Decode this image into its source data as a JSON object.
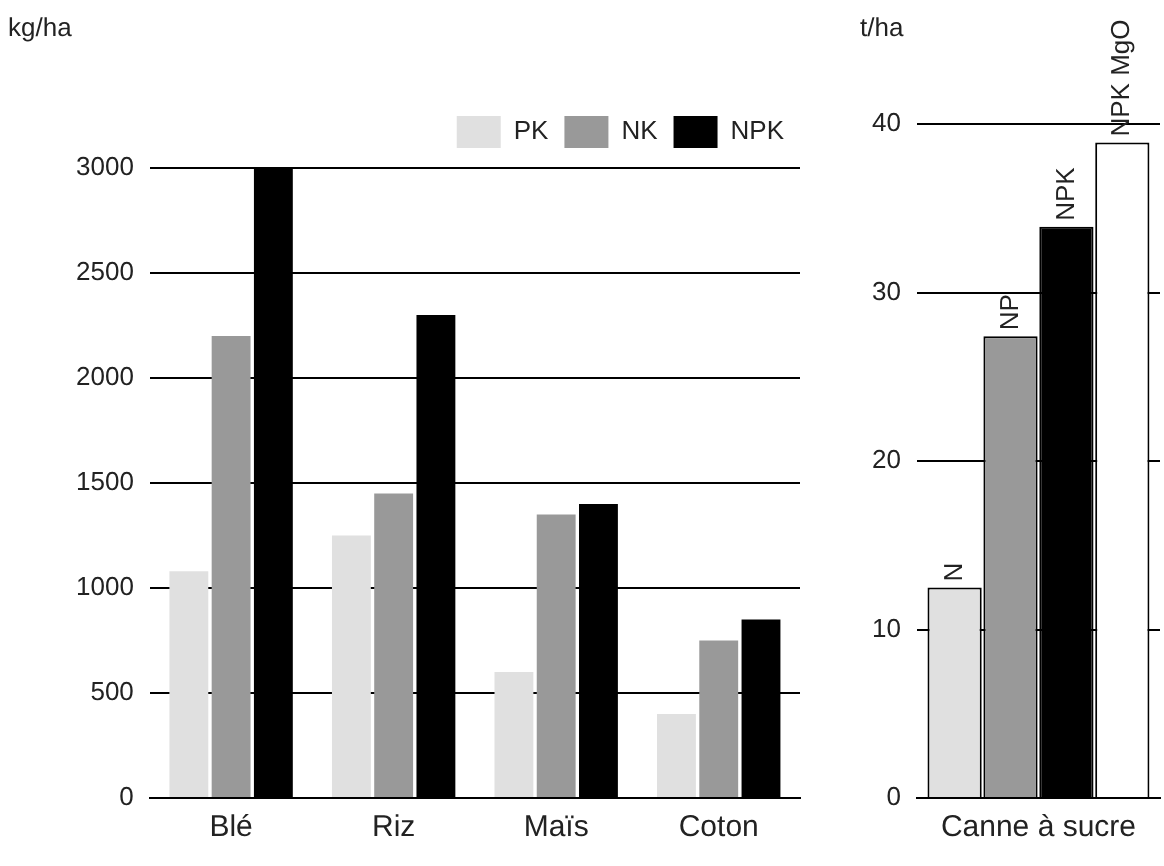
{
  "chart_data": [
    {
      "type": "bar",
      "ylabel": "kg/ha",
      "categories": [
        "Blé",
        "Riz",
        "Maïs",
        "Coton"
      ],
      "series": [
        {
          "name": "PK",
          "color": "#e0e0e0",
          "values": [
            1080,
            1250,
            600,
            400
          ]
        },
        {
          "name": "NK",
          "color": "#999999",
          "values": [
            2200,
            1450,
            1350,
            750
          ]
        },
        {
          "name": "NPK",
          "color": "#000000",
          "values": [
            3000,
            2300,
            1400,
            850
          ]
        }
      ],
      "ylim": [
        0,
        3000
      ],
      "yticks": [
        0,
        500,
        1000,
        1500,
        2000,
        2500,
        3000
      ],
      "grid": "y",
      "legend": "top right"
    },
    {
      "type": "bar",
      "ylabel": "t/ha",
      "categories": [
        "Canne à sucre"
      ],
      "series": [
        {
          "name": "N",
          "color": "#e0e0e0",
          "values": [
            12.5
          ]
        },
        {
          "name": "NP",
          "color": "#999999",
          "values": [
            27.4
          ]
        },
        {
          "name": "NPK",
          "color": "#000000",
          "values": [
            33.9
          ]
        },
        {
          "name": "NPK MgO",
          "color": "#ffffff",
          "values": [
            38.9
          ]
        }
      ],
      "ylim": [
        0,
        40
      ],
      "yticks": [
        0,
        10,
        20,
        30,
        40
      ],
      "grid": "y",
      "legend": false
    }
  ]
}
